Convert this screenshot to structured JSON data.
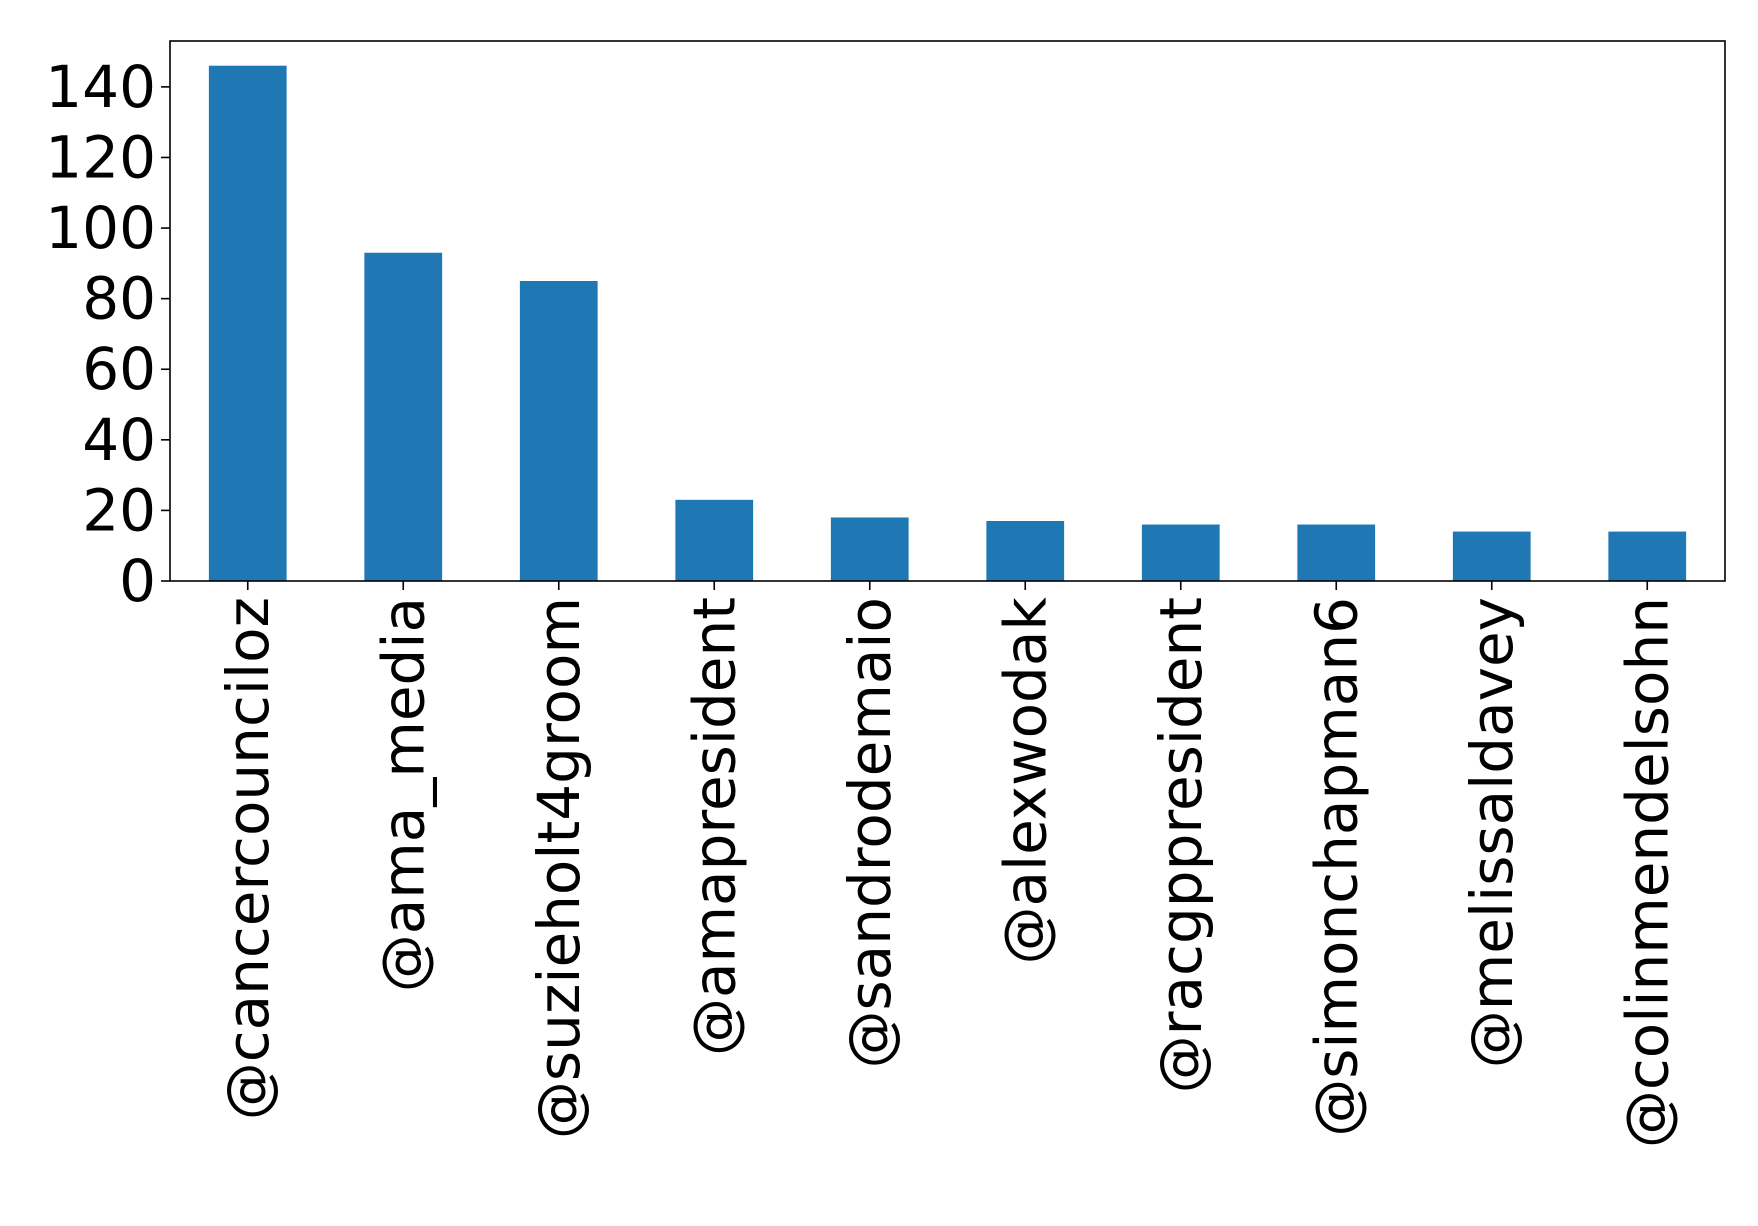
{
  "chart_data": {
    "type": "bar",
    "title": "",
    "xlabel": "",
    "ylabel": "",
    "categories": [
      "@cancercounciloz",
      "@ama_media",
      "@suzieholt4groom",
      "@amapresident",
      "@sandrodemaio",
      "@alexwodak",
      "@racgppresident",
      "@simonchapman6",
      "@melissaldavey",
      "@colinmendelsohn"
    ],
    "values": [
      146,
      93,
      85,
      23,
      18,
      17,
      16,
      16,
      14,
      14
    ],
    "ylim": [
      0,
      153
    ],
    "yticks": [
      0,
      20,
      40,
      60,
      80,
      100,
      120,
      140
    ],
    "bar_color": "#1f77b4",
    "grid": false,
    "legend": "none"
  }
}
